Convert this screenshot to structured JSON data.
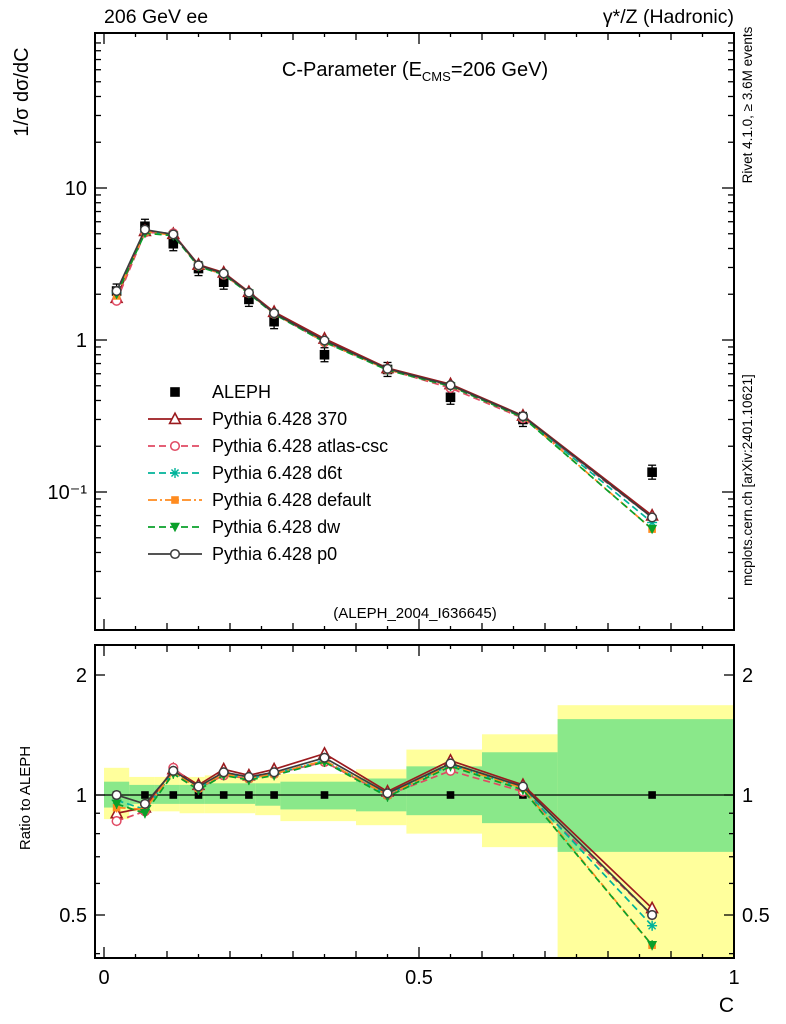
{
  "header": {
    "left": "206 GeV ee",
    "right": "γ*/Z (Hadronic)"
  },
  "titles": {
    "main_prefix": "C-Parameter (E",
    "main_sub": "CMS",
    "main_suffix": "=206 GeV)",
    "watermark": "(ALEPH_2004_I636645)",
    "ylabel_main": "1/σ  dσ/dC",
    "ylabel_ratio": "Ratio to ALEPH",
    "xlabel": "C",
    "side_top": "Rivet 4.1.0, ≥ 3.6M events",
    "side_bottom": "mcplots.cern.ch [arXiv:2401.10621]"
  },
  "colors": {
    "band_yellow": "#ffff9c",
    "band_green": "#8ae88a",
    "frame": "#000000",
    "watermark": "#b3b3b3",
    "side_text": "#808080"
  },
  "chart_data": {
    "type": "line",
    "title": "C-Parameter (E_CMS=206 GeV)",
    "xlabel": "C",
    "ylabel_main": "1/σ dσ/dC",
    "ylabel_ratio": "Ratio to ALEPH",
    "x_range": [
      0,
      1
    ],
    "y_main_log_range": [
      0.0125,
      100
    ],
    "y_ratio_log_range": [
      0.39,
      2.38
    ],
    "legend_position": "middle-left",
    "grid": false,
    "xticks": [
      {
        "v": 0,
        "label": "0"
      },
      {
        "v": 0.5,
        "label": "0.5"
      },
      {
        "v": 1,
        "label": "1"
      }
    ],
    "yticks_main": [
      {
        "v": 10,
        "label": "10"
      },
      {
        "v": 1,
        "label": "1"
      },
      {
        "v": 0.1,
        "label": "10⁻¹"
      }
    ],
    "yticks_ratio": [
      {
        "v": 2,
        "label": "2"
      },
      {
        "v": 1,
        "label": "1"
      },
      {
        "v": 0.5,
        "label": "0.5"
      }
    ],
    "x": [
      0.02,
      0.065,
      0.11,
      0.15,
      0.19,
      0.23,
      0.27,
      0.35,
      0.45,
      0.55,
      0.665,
      0.87
    ],
    "series": [
      {
        "id": "aleph",
        "name": "ALEPH",
        "color": "#000000",
        "marker": "square-filled",
        "line": "none",
        "dash": "",
        "values": [
          2.1,
          5.6,
          4.3,
          2.95,
          2.4,
          1.85,
          1.32,
          0.8,
          0.64,
          0.42,
          0.3,
          0.135
        ],
        "ratio": [
          1,
          1,
          1,
          1,
          1,
          1,
          1,
          1,
          1,
          1,
          1,
          1
        ]
      },
      {
        "id": "py370",
        "name": "Pythia 6.428 370",
        "color": "#9b1a1e",
        "marker": "triangle-open",
        "line": "solid",
        "dash": "",
        "values": [
          1.89,
          5.21,
          4.99,
          3.13,
          2.78,
          2.07,
          1.53,
          1.02,
          0.653,
          0.512,
          0.318,
          0.07
        ],
        "ratio": [
          0.9,
          0.93,
          1.16,
          1.06,
          1.16,
          1.12,
          1.16,
          1.27,
          1.02,
          1.22,
          1.06,
          0.52
        ]
      },
      {
        "id": "atlas-csc",
        "name": "Pythia 6.428 atlas-csc",
        "color": "#e04a63",
        "marker": "circle-open",
        "line": "dashed",
        "dash": "7 4",
        "values": [
          1.81,
          5.1,
          5.03,
          3.07,
          2.69,
          2.04,
          1.49,
          0.968,
          0.64,
          0.483,
          0.306,
          0.068
        ],
        "ratio": [
          0.86,
          0.91,
          1.17,
          1.04,
          1.12,
          1.1,
          1.13,
          1.21,
          1.0,
          1.15,
          1.02,
          0.5
        ]
      },
      {
        "id": "d6t",
        "name": "Pythia 6.428 d6t",
        "color": "#00b39a",
        "marker": "star",
        "line": "dashed",
        "dash": "7 4",
        "values": [
          2.04,
          5.15,
          4.9,
          3.07,
          2.71,
          2.04,
          1.49,
          0.976,
          0.64,
          0.5,
          0.312,
          0.063
        ],
        "ratio": [
          0.97,
          0.92,
          1.14,
          1.04,
          1.13,
          1.1,
          1.13,
          1.22,
          1.0,
          1.19,
          1.04,
          0.47
        ]
      },
      {
        "id": "default",
        "name": "Pythia 6.428 default",
        "color": "#ff8b1f",
        "marker": "square-filled-small",
        "line": "dashdot",
        "dash": "9 3 2 3",
        "values": [
          1.95,
          5.15,
          4.9,
          3.07,
          2.71,
          2.04,
          1.49,
          0.976,
          0.64,
          0.5,
          0.312,
          0.057
        ],
        "ratio": [
          0.93,
          0.92,
          1.14,
          1.04,
          1.13,
          1.1,
          1.13,
          1.22,
          1.0,
          1.19,
          1.04,
          0.42
        ]
      },
      {
        "id": "dw",
        "name": "Pythia 6.428 dw",
        "color": "#0aa02a",
        "marker": "triangle-down-filled",
        "line": "dashed",
        "dash": "7 4",
        "values": [
          2.0,
          5.04,
          4.86,
          3.04,
          2.69,
          2.02,
          1.48,
          0.968,
          0.634,
          0.496,
          0.309,
          0.057
        ],
        "ratio": [
          0.95,
          0.9,
          1.13,
          1.03,
          1.12,
          1.09,
          1.12,
          1.21,
          0.99,
          1.18,
          1.03,
          0.42
        ]
      },
      {
        "id": "p0",
        "name": "Pythia 6.428 p0",
        "color": "#3c3c3c",
        "marker": "circle-open",
        "line": "solid",
        "dash": "",
        "values": [
          2.1,
          5.32,
          4.95,
          3.1,
          2.74,
          2.05,
          1.5,
          0.992,
          0.646,
          0.504,
          0.315,
          0.068
        ],
        "ratio": [
          1.0,
          0.95,
          1.15,
          1.05,
          1.14,
          1.11,
          1.14,
          1.24,
          1.01,
          1.2,
          1.05,
          0.5
        ]
      }
    ],
    "ratio_bands": [
      {
        "x0": 0.0,
        "x1": 0.04,
        "yellow": [
          0.87,
          1.17
        ],
        "green": [
          0.93,
          1.08
        ]
      },
      {
        "x0": 0.04,
        "x1": 0.08,
        "yellow": [
          0.91,
          1.11
        ],
        "green": [
          0.95,
          1.06
        ]
      },
      {
        "x0": 0.08,
        "x1": 0.12,
        "yellow": [
          0.91,
          1.11
        ],
        "green": [
          0.95,
          1.06
        ]
      },
      {
        "x0": 0.12,
        "x1": 0.16,
        "yellow": [
          0.9,
          1.11
        ],
        "green": [
          0.95,
          1.06
        ]
      },
      {
        "x0": 0.16,
        "x1": 0.2,
        "yellow": [
          0.9,
          1.12
        ],
        "green": [
          0.95,
          1.07
        ]
      },
      {
        "x0": 0.2,
        "x1": 0.24,
        "yellow": [
          0.9,
          1.12
        ],
        "green": [
          0.95,
          1.07
        ]
      },
      {
        "x0": 0.24,
        "x1": 0.28,
        "yellow": [
          0.89,
          1.12
        ],
        "green": [
          0.94,
          1.07
        ]
      },
      {
        "x0": 0.28,
        "x1": 0.4,
        "yellow": [
          0.86,
          1.13
        ],
        "green": [
          0.92,
          1.08
        ]
      },
      {
        "x0": 0.4,
        "x1": 0.48,
        "yellow": [
          0.84,
          1.16
        ],
        "green": [
          0.91,
          1.1
        ]
      },
      {
        "x0": 0.48,
        "x1": 0.6,
        "yellow": [
          0.8,
          1.3
        ],
        "green": [
          0.89,
          1.18
        ]
      },
      {
        "x0": 0.6,
        "x1": 0.72,
        "yellow": [
          0.74,
          1.42
        ],
        "green": [
          0.85,
          1.28
        ]
      },
      {
        "x0": 0.72,
        "x1": 1.0,
        "yellow": [
          0.38,
          1.68
        ],
        "green": [
          0.72,
          1.55
        ]
      }
    ]
  }
}
